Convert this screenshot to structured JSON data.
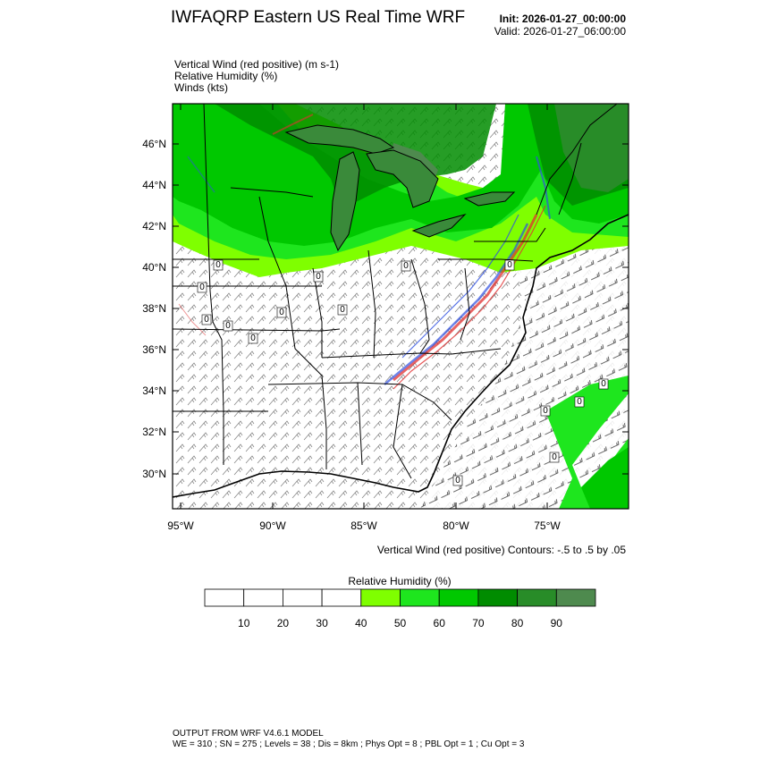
{
  "header": {
    "title": "IWFAQRP Eastern US Real Time WRF",
    "init": "Init: 2026-01-27_00:00:00",
    "valid": "Valid: 2026-01-27_06:00:00"
  },
  "fields": [
    "Vertical Wind (red positive)   (m s-1)",
    "Relative Humidity   (%)",
    "Winds   (kts)"
  ],
  "map": {
    "lat_labels": [
      "46°N",
      "44°N",
      "42°N",
      "40°N",
      "38°N",
      "36°N",
      "34°N",
      "32°N",
      "30°N"
    ],
    "lon_labels": [
      "95°W",
      "90°W",
      "85°W",
      "80°W",
      "75°W"
    ],
    "contour_labels": [
      "0",
      "0",
      "0",
      "0",
      "0",
      "0",
      "0",
      "0",
      "0",
      "0",
      "0",
      "0",
      "0",
      "0",
      "0"
    ],
    "contour_note": "Vertical Wind (red positive) Contours: -.5 to .5 by .05",
    "colors": {
      "positive": "#e03030",
      "negative": "#3050e0",
      "ocean_bg": "#ffffff"
    }
  },
  "legend": {
    "title": "Relative Humidity   (%)",
    "labels": [
      "10",
      "20",
      "30",
      "40",
      "50",
      "60",
      "70",
      "80",
      "90"
    ],
    "colors": [
      "#ffffff",
      "#ffffff",
      "#ffffff",
      "#ffffff",
      "#7fff00",
      "#1ee61e",
      "#00c800",
      "#008c00",
      "#288c28",
      "#4e8a4e"
    ]
  },
  "footer": {
    "line1": "OUTPUT FROM WRF V4.6.1 MODEL",
    "line2": "WE = 310 ; SN = 275 ; Levels = 38 ; Dis = 8km ; Phys Opt = 8 ; PBL Opt = 1 ; Cu Opt = 3"
  }
}
